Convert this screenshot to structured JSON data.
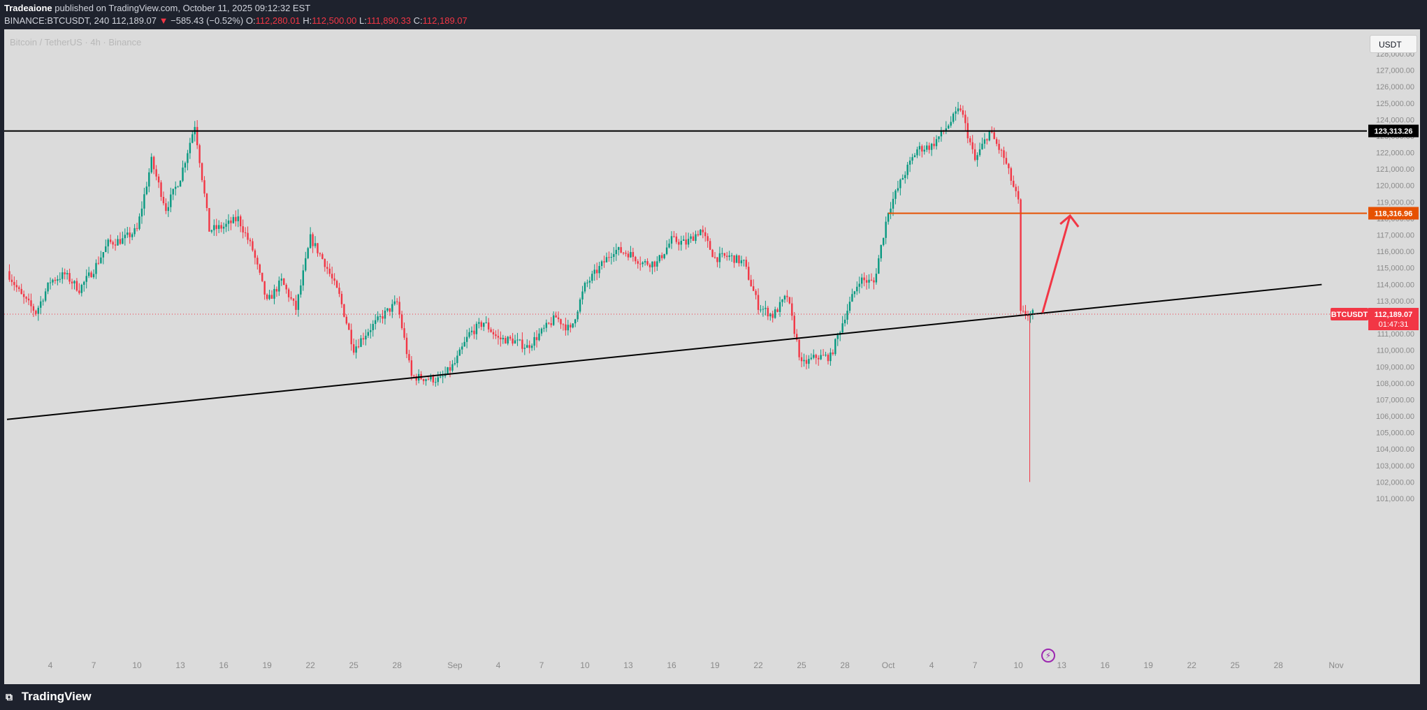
{
  "header": {
    "author": "Tradeaione",
    "published_text": "published on TradingView.com, October 11, 2025 09:12:32 EST",
    "symbol": "BINANCE:BTCUSDT, 240",
    "last": "112,189.07",
    "change": "−585.43 (−0.52%)",
    "o_label": "O:",
    "o_value": "112,280.01",
    "h_label": "H:",
    "h_value": "112,500.00",
    "l_label": "L:",
    "l_value": "111,890.33",
    "c_label": "C:",
    "c_value": "112,189.07"
  },
  "chart": {
    "symbol_description": "Bitcoin / TetherUS · 4h · Binance",
    "currency_button": "USDT",
    "bolt_icon": "lightning-icon",
    "price_tag_name": "BTCUSDT",
    "price_tag_value": "112,189.07",
    "countdown": "01:47:31",
    "resistance_label": "123,313.26",
    "target_label": "118,316.96"
  },
  "footer": {
    "logo": "TradingView"
  },
  "colors": {
    "background": "#dbdbdb",
    "up_candle": "#089981",
    "down_candle": "#f23645",
    "resistance_line": "#000000",
    "target_line": "#e65100",
    "arrow": "#f23645",
    "header_bg": "#1e222d"
  },
  "chart_data": {
    "type": "candlestick",
    "timeframe": "4h",
    "y_axis": {
      "ticks": [
        101000,
        102000,
        103000,
        104000,
        105000,
        106000,
        107000,
        108000,
        109000,
        110000,
        111000,
        112000,
        113000,
        114000,
        115000,
        116000,
        117000,
        118000,
        119000,
        120000,
        121000,
        122000,
        123000,
        124000,
        125000,
        126000,
        127000,
        128000
      ],
      "tick_labels": [
        "101,000.00",
        "102,000.00",
        "103,000.00",
        "104,000.00",
        "105,000.00",
        "106,000.00",
        "107,000.00",
        "108,000.00",
        "109,000.00",
        "110,000.00",
        "111,000.00",
        "112,000.00",
        "113,000.00",
        "114,000.00",
        "115,000.00",
        "116,000.00",
        "117,000.00",
        "118,000.00",
        "119,000.00",
        "120,000.00",
        "121,000.00",
        "122,000.00",
        "123,000.00",
        "124,000.00",
        "125,000.00",
        "126,000.00",
        "127,000.00",
        "128,000.00"
      ],
      "range": [
        100500,
        128600
      ]
    },
    "x_axis": {
      "tick_labels": [
        "4",
        "7",
        "10",
        "13",
        "16",
        "19",
        "22",
        "25",
        "28",
        "Sep",
        "4",
        "7",
        "10",
        "13",
        "16",
        "19",
        "22",
        "25",
        "28",
        "Oct",
        "4",
        "7",
        "10",
        "13",
        "16",
        "19",
        "22",
        "25",
        "28",
        "Nov"
      ],
      "range_days": [
        "2025-08-01",
        "2025-11-01"
      ]
    },
    "price_path": [
      [
        "2025-08-01",
        114800
      ],
      [
        "2025-08-02",
        113300
      ],
      [
        "2025-08-03",
        112300
      ],
      [
        "2025-08-04",
        114200
      ],
      [
        "2025-08-05",
        114600
      ],
      [
        "2025-08-06",
        113700
      ],
      [
        "2025-08-07",
        114900
      ],
      [
        "2025-08-08",
        116500
      ],
      [
        "2025-08-09",
        116700
      ],
      [
        "2025-08-10",
        117300
      ],
      [
        "2025-08-11",
        121500
      ],
      [
        "2025-08-12",
        118600
      ],
      [
        "2025-08-13",
        120500
      ],
      [
        "2025-08-14",
        123700
      ],
      [
        "2025-08-15",
        117300
      ],
      [
        "2025-08-16",
        117500
      ],
      [
        "2025-08-17",
        118000
      ],
      [
        "2025-08-18",
        116100
      ],
      [
        "2025-08-19",
        112900
      ],
      [
        "2025-08-20",
        114200
      ],
      [
        "2025-08-21",
        112500
      ],
      [
        "2025-08-22",
        116800
      ],
      [
        "2025-08-23",
        115300
      ],
      [
        "2025-08-24",
        113300
      ],
      [
        "2025-08-25",
        110100
      ],
      [
        "2025-08-26",
        111200
      ],
      [
        "2025-08-27",
        112100
      ],
      [
        "2025-08-28",
        112900
      ],
      [
        "2025-08-29",
        108400
      ],
      [
        "2025-08-30",
        108300
      ],
      [
        "2025-08-31",
        108200
      ],
      [
        "2025-09-01",
        109200
      ],
      [
        "2025-09-02",
        111000
      ],
      [
        "2025-09-03",
        111700
      ],
      [
        "2025-09-04",
        110700
      ],
      [
        "2025-09-05",
        110600
      ],
      [
        "2025-09-06",
        110200
      ],
      [
        "2025-09-07",
        111100
      ],
      [
        "2025-09-08",
        112000
      ],
      [
        "2025-09-09",
        111200
      ],
      [
        "2025-09-10",
        113900
      ],
      [
        "2025-09-11",
        115000
      ],
      [
        "2025-09-12",
        116100
      ],
      [
        "2025-09-13",
        115900
      ],
      [
        "2025-09-14",
        115300
      ],
      [
        "2025-09-15",
        115300
      ],
      [
        "2025-09-16",
        116700
      ],
      [
        "2025-09-17",
        116500
      ],
      [
        "2025-09-18",
        117300
      ],
      [
        "2025-09-19",
        115600
      ],
      [
        "2025-09-20",
        115700
      ],
      [
        "2025-09-21",
        115300
      ],
      [
        "2025-09-22",
        112700
      ],
      [
        "2025-09-23",
        112100
      ],
      [
        "2025-09-24",
        113300
      ],
      [
        "2025-09-25",
        109100
      ],
      [
        "2025-09-26",
        109600
      ],
      [
        "2025-09-27",
        109600
      ],
      [
        "2025-09-28",
        112100
      ],
      [
        "2025-09-29",
        114300
      ],
      [
        "2025-09-30",
        114100
      ],
      [
        "2025-10-01",
        118500
      ],
      [
        "2025-10-02",
        120500
      ],
      [
        "2025-10-03",
        122200
      ],
      [
        "2025-10-04",
        122400
      ],
      [
        "2025-10-05",
        123500
      ],
      [
        "2025-10-06",
        124700
      ],
      [
        "2025-10-07",
        121500
      ],
      [
        "2025-10-08",
        123300
      ],
      [
        "2025-10-09",
        121700
      ],
      [
        "2025-10-10",
        119000
      ],
      [
        "2025-10-10T17",
        112900
      ],
      [
        "2025-10-11",
        112189
      ]
    ],
    "resistance_level": 123313.26,
    "target_level": 118316.96,
    "last_price": 112189.07,
    "flash_crash_low": 102000,
    "trendline": [
      [
        "2025-08-01",
        105800
      ],
      [
        "2025-10-11",
        112189
      ]
    ],
    "projection_arrow": [
      [
        "2025-10-11",
        112189
      ],
      [
        "2025-10-13",
        118000
      ]
    ]
  }
}
